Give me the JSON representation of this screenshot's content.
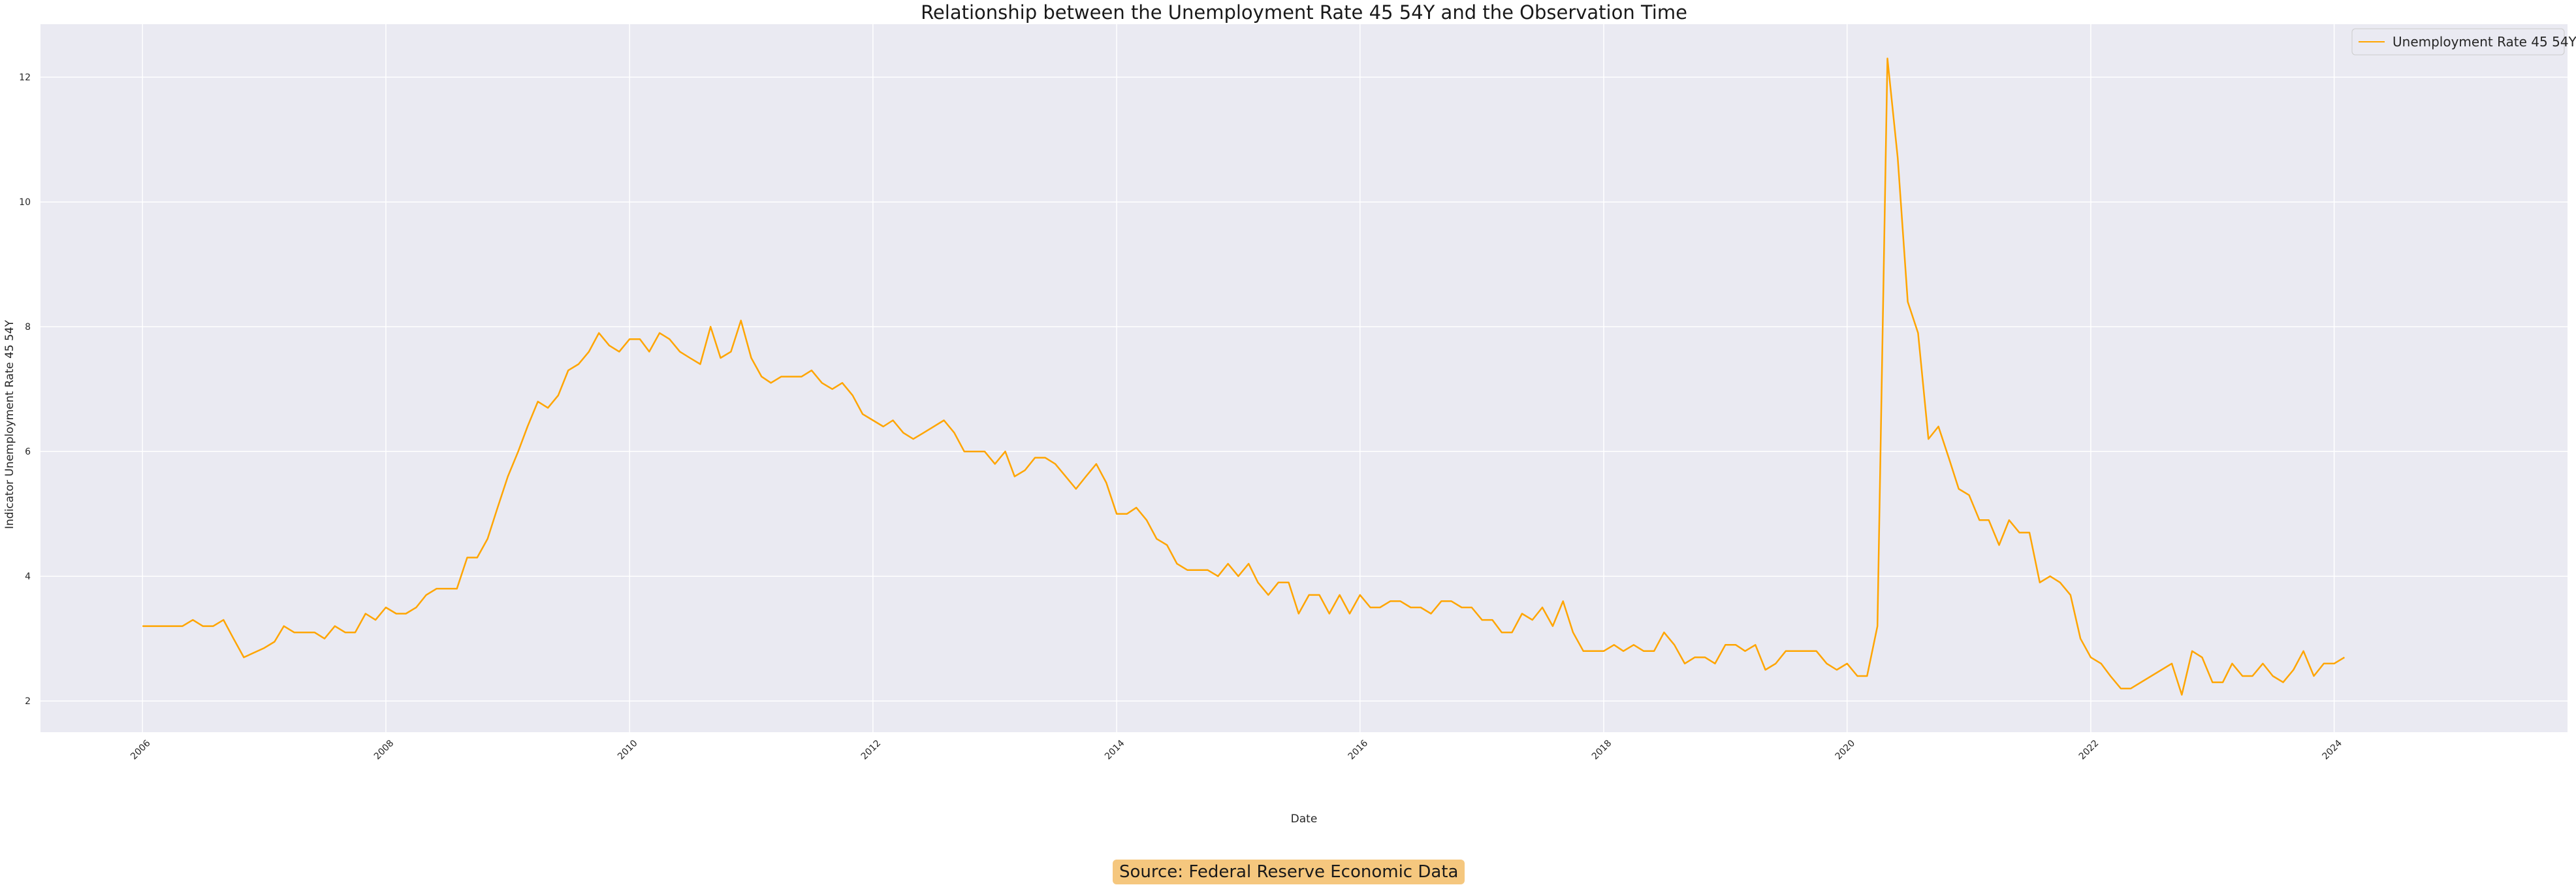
{
  "chart_data": {
    "type": "line",
    "title": "Relationship between the Unemployment Rate 45 54Y and the Observation Time",
    "xlabel": "Date",
    "ylabel": "Indicator Unemployment Rate 45 54Y",
    "x_ticks": [
      "2006",
      "2008",
      "2010",
      "2012",
      "2014",
      "2016",
      "2018",
      "2020",
      "2022",
      "2024"
    ],
    "y_ticks": [
      "2",
      "4",
      "6",
      "8",
      "10",
      "12"
    ],
    "xlim": [
      "2005-03-01",
      "2025-12-01"
    ],
    "ylim": [
      1.5,
      12.85
    ],
    "grid": true,
    "legend_position": "top-right",
    "series": [
      {
        "name": "Unemployment Rate 45 54Y",
        "color": "#ffa500",
        "points": [
          [
            "2006-01-01",
            3.2
          ],
          [
            "2006-02-01",
            3.2
          ],
          [
            "2006-03-01",
            3.2
          ],
          [
            "2006-04-01",
            3.2
          ],
          [
            "2006-05-01",
            3.2
          ],
          [
            "2006-06-01",
            3.3
          ],
          [
            "2006-07-01",
            3.2
          ],
          [
            "2006-08-01",
            3.2
          ],
          [
            "2006-09-01",
            3.3
          ],
          [
            "2006-10-01",
            3.0
          ],
          [
            "2006-11-01",
            2.7
          ],
          [
            "2007-01-01",
            2.85
          ],
          [
            "2007-02-01",
            2.95
          ],
          [
            "2007-03-01",
            3.2
          ],
          [
            "2007-04-01",
            3.1
          ],
          [
            "2007-05-01",
            3.1
          ],
          [
            "2007-06-01",
            3.1
          ],
          [
            "2007-07-01",
            3.0
          ],
          [
            "2007-08-01",
            3.2
          ],
          [
            "2007-09-01",
            3.1
          ],
          [
            "2007-10-01",
            3.1
          ],
          [
            "2007-11-01",
            3.4
          ],
          [
            "2007-12-01",
            3.3
          ],
          [
            "2008-01-01",
            3.5
          ],
          [
            "2008-02-01",
            3.4
          ],
          [
            "2008-03-01",
            3.4
          ],
          [
            "2008-04-01",
            3.5
          ],
          [
            "2008-05-01",
            3.7
          ],
          [
            "2008-06-01",
            3.8
          ],
          [
            "2008-07-01",
            3.8
          ],
          [
            "2008-08-01",
            3.8
          ],
          [
            "2008-09-01",
            4.3
          ],
          [
            "2008-10-01",
            4.3
          ],
          [
            "2008-11-01",
            4.6
          ],
          [
            "2008-12-01",
            5.1
          ],
          [
            "2009-01-01",
            5.6
          ],
          [
            "2009-02-01",
            6.0
          ],
          [
            "2009-03-01",
            6.4
          ],
          [
            "2009-04-01",
            6.8
          ],
          [
            "2009-05-01",
            6.7
          ],
          [
            "2009-06-01",
            6.9
          ],
          [
            "2009-07-01",
            7.3
          ],
          [
            "2009-08-01",
            7.4
          ],
          [
            "2009-09-01",
            7.6
          ],
          [
            "2009-10-01",
            7.9
          ],
          [
            "2009-11-01",
            7.7
          ],
          [
            "2009-12-01",
            7.6
          ],
          [
            "2010-01-01",
            7.8
          ],
          [
            "2010-02-01",
            7.8
          ],
          [
            "2010-03-01",
            7.6
          ],
          [
            "2010-04-01",
            7.9
          ],
          [
            "2010-05-01",
            7.8
          ],
          [
            "2010-06-01",
            7.6
          ],
          [
            "2010-07-01",
            7.5
          ],
          [
            "2010-08-01",
            7.4
          ],
          [
            "2010-09-01",
            8.0
          ],
          [
            "2010-10-01",
            7.5
          ],
          [
            "2010-11-01",
            7.6
          ],
          [
            "2010-12-01",
            8.1
          ],
          [
            "2011-01-01",
            7.5
          ],
          [
            "2011-02-01",
            7.2
          ],
          [
            "2011-03-01",
            7.1
          ],
          [
            "2011-04-01",
            7.2
          ],
          [
            "2011-05-01",
            7.2
          ],
          [
            "2011-06-01",
            7.2
          ],
          [
            "2011-07-01",
            7.3
          ],
          [
            "2011-08-01",
            7.1
          ],
          [
            "2011-09-01",
            7.0
          ],
          [
            "2011-10-01",
            7.1
          ],
          [
            "2011-11-01",
            6.9
          ],
          [
            "2011-12-01",
            6.6
          ],
          [
            "2012-01-01",
            6.5
          ],
          [
            "2012-02-01",
            6.4
          ],
          [
            "2012-03-01",
            6.5
          ],
          [
            "2012-04-01",
            6.3
          ],
          [
            "2012-05-01",
            6.2
          ],
          [
            "2012-06-01",
            6.3
          ],
          [
            "2012-08-01",
            6.5
          ],
          [
            "2012-09-01",
            6.3
          ],
          [
            "2012-10-01",
            6.0
          ],
          [
            "2012-11-01",
            6.0
          ],
          [
            "2012-12-01",
            6.0
          ],
          [
            "2013-01-01",
            5.8
          ],
          [
            "2013-02-01",
            6.0
          ],
          [
            "2013-03-01",
            5.6
          ],
          [
            "2013-04-01",
            5.7
          ],
          [
            "2013-05-01",
            5.9
          ],
          [
            "2013-06-01",
            5.9
          ],
          [
            "2013-07-01",
            5.8
          ],
          [
            "2013-08-01",
            5.6
          ],
          [
            "2013-09-01",
            5.4
          ],
          [
            "2013-10-01",
            5.6
          ],
          [
            "2013-11-01",
            5.8
          ],
          [
            "2013-12-01",
            5.5
          ],
          [
            "2014-01-01",
            5.0
          ],
          [
            "2014-02-01",
            5.0
          ],
          [
            "2014-03-01",
            5.1
          ],
          [
            "2014-04-01",
            4.9
          ],
          [
            "2014-05-01",
            4.6
          ],
          [
            "2014-06-01",
            4.5
          ],
          [
            "2014-07-01",
            4.2
          ],
          [
            "2014-08-01",
            4.1
          ],
          [
            "2014-09-01",
            4.1
          ],
          [
            "2014-10-01",
            4.1
          ],
          [
            "2014-11-01",
            4.0
          ],
          [
            "2014-12-01",
            4.2
          ],
          [
            "2015-01-01",
            4.0
          ],
          [
            "2015-02-01",
            4.2
          ],
          [
            "2015-03-01",
            3.9
          ],
          [
            "2015-04-01",
            3.7
          ],
          [
            "2015-05-01",
            3.9
          ],
          [
            "2015-06-01",
            3.9
          ],
          [
            "2015-07-01",
            3.4
          ],
          [
            "2015-08-01",
            3.7
          ],
          [
            "2015-09-01",
            3.7
          ],
          [
            "2015-10-01",
            3.4
          ],
          [
            "2015-11-01",
            3.7
          ],
          [
            "2015-12-01",
            3.4
          ],
          [
            "2016-01-01",
            3.7
          ],
          [
            "2016-02-01",
            3.5
          ],
          [
            "2016-03-01",
            3.5
          ],
          [
            "2016-04-01",
            3.6
          ],
          [
            "2016-05-01",
            3.6
          ],
          [
            "2016-06-01",
            3.5
          ],
          [
            "2016-07-01",
            3.5
          ],
          [
            "2016-08-01",
            3.4
          ],
          [
            "2016-09-01",
            3.6
          ],
          [
            "2016-10-01",
            3.6
          ],
          [
            "2016-11-01",
            3.5
          ],
          [
            "2016-12-01",
            3.5
          ],
          [
            "2017-01-01",
            3.3
          ],
          [
            "2017-02-01",
            3.3
          ],
          [
            "2017-03-01",
            3.1
          ],
          [
            "2017-04-01",
            3.1
          ],
          [
            "2017-05-01",
            3.4
          ],
          [
            "2017-06-01",
            3.3
          ],
          [
            "2017-07-01",
            3.5
          ],
          [
            "2017-08-01",
            3.2
          ],
          [
            "2017-09-01",
            3.6
          ],
          [
            "2017-10-01",
            3.1
          ],
          [
            "2017-11-01",
            2.8
          ],
          [
            "2017-12-01",
            2.8
          ],
          [
            "2018-01-01",
            2.8
          ],
          [
            "2018-02-01",
            2.9
          ],
          [
            "2018-03-01",
            2.8
          ],
          [
            "2018-04-01",
            2.9
          ],
          [
            "2018-05-01",
            2.8
          ],
          [
            "2018-06-01",
            2.8
          ],
          [
            "2018-07-01",
            3.1
          ],
          [
            "2018-08-01",
            2.9
          ],
          [
            "2018-09-01",
            2.6
          ],
          [
            "2018-10-01",
            2.7
          ],
          [
            "2018-11-01",
            2.7
          ],
          [
            "2018-12-01",
            2.6
          ],
          [
            "2019-01-01",
            2.9
          ],
          [
            "2019-02-01",
            2.9
          ],
          [
            "2019-03-01",
            2.8
          ],
          [
            "2019-04-01",
            2.9
          ],
          [
            "2019-05-01",
            2.5
          ],
          [
            "2019-06-01",
            2.6
          ],
          [
            "2019-07-01",
            2.8
          ],
          [
            "2019-08-01",
            2.8
          ],
          [
            "2019-09-01",
            2.8
          ],
          [
            "2019-10-01",
            2.8
          ],
          [
            "2019-11-01",
            2.6
          ],
          [
            "2019-12-01",
            2.5
          ],
          [
            "2020-01-01",
            2.6
          ],
          [
            "2020-02-01",
            2.4
          ],
          [
            "2020-03-01",
            2.4
          ],
          [
            "2020-04-01",
            3.2
          ],
          [
            "2020-05-01",
            12.3
          ],
          [
            "2020-06-01",
            10.7
          ],
          [
            "2020-07-01",
            8.4
          ],
          [
            "2020-08-01",
            7.9
          ],
          [
            "2020-09-01",
            6.2
          ],
          [
            "2020-10-01",
            6.4
          ],
          [
            "2020-11-01",
            5.9
          ],
          [
            "2020-12-01",
            5.4
          ],
          [
            "2021-01-01",
            5.3
          ],
          [
            "2021-02-01",
            4.9
          ],
          [
            "2021-03-01",
            4.9
          ],
          [
            "2021-04-01",
            4.5
          ],
          [
            "2021-05-01",
            4.9
          ],
          [
            "2021-06-01",
            4.7
          ],
          [
            "2021-07-01",
            4.7
          ],
          [
            "2021-08-01",
            3.9
          ],
          [
            "2021-09-01",
            4.0
          ],
          [
            "2021-10-01",
            3.9
          ],
          [
            "2021-11-01",
            3.7
          ],
          [
            "2021-12-01",
            3.0
          ],
          [
            "2022-01-01",
            2.7
          ],
          [
            "2022-02-01",
            2.6
          ],
          [
            "2022-03-01",
            2.4
          ],
          [
            "2022-04-01",
            2.2
          ],
          [
            "2022-05-01",
            2.2
          ],
          [
            "2022-09-01",
            2.6
          ],
          [
            "2022-10-01",
            2.1
          ],
          [
            "2022-11-01",
            2.8
          ],
          [
            "2022-12-01",
            2.7
          ],
          [
            "2023-01-01",
            2.3
          ],
          [
            "2023-02-01",
            2.3
          ],
          [
            "2023-03-01",
            2.6
          ],
          [
            "2023-04-01",
            2.4
          ],
          [
            "2023-05-01",
            2.4
          ],
          [
            "2023-06-01",
            2.6
          ],
          [
            "2023-07-01",
            2.4
          ],
          [
            "2023-08-01",
            2.3
          ],
          [
            "2023-09-01",
            2.5
          ],
          [
            "2023-10-01",
            2.8
          ],
          [
            "2023-11-01",
            2.4
          ],
          [
            "2023-12-01",
            2.6
          ],
          [
            "2024-01-01",
            2.6
          ],
          [
            "2024-02-01",
            2.7
          ]
        ]
      }
    ]
  },
  "source_note": "Source: Federal Reserve Economic Data"
}
